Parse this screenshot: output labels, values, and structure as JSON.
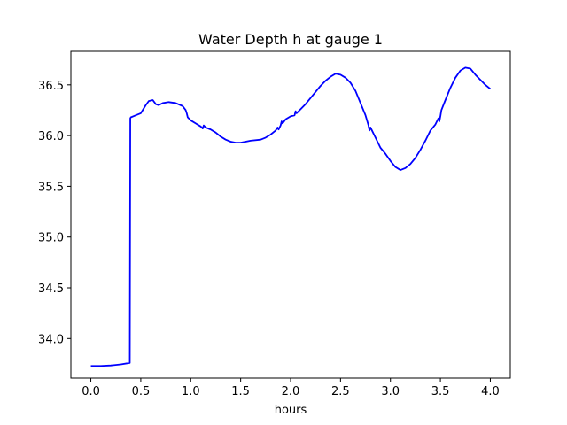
{
  "chart_data": {
    "type": "line",
    "title": "Water Depth h at gauge 1",
    "xlabel": "hours",
    "ylabel": "",
    "xlim": [
      -0.2,
      4.2
    ],
    "ylim": [
      33.61,
      36.83
    ],
    "xticks": [
      "0.0",
      "0.5",
      "1.0",
      "1.5",
      "2.0",
      "2.5",
      "3.0",
      "3.5",
      "4.0"
    ],
    "yticks": [
      "34.0",
      "34.5",
      "35.0",
      "35.5",
      "36.0",
      "36.5"
    ],
    "grid": false,
    "colors": {
      "line": "#0000ff",
      "axis": "#000000",
      "background": "#ffffff"
    },
    "series": [
      {
        "x": [
          0.0,
          0.1,
          0.2,
          0.3,
          0.39,
          0.395,
          0.4,
          0.45,
          0.5,
          0.55,
          0.58,
          0.62,
          0.65,
          0.68,
          0.72,
          0.78,
          0.85,
          0.92,
          0.95,
          0.96,
          0.97,
          1.0,
          1.05,
          1.1,
          1.12,
          1.13,
          1.15,
          1.2,
          1.25,
          1.3,
          1.35,
          1.4,
          1.45,
          1.5,
          1.55,
          1.6,
          1.7,
          1.75,
          1.8,
          1.85,
          1.87,
          1.88,
          1.9,
          1.91,
          1.92,
          1.95,
          2.0,
          2.04,
          2.05,
          2.06,
          2.1,
          2.15,
          2.2,
          2.25,
          2.3,
          2.35,
          2.4,
          2.45,
          2.5,
          2.55,
          2.6,
          2.65,
          2.7,
          2.75,
          2.78,
          2.79,
          2.8,
          2.85,
          2.9,
          2.95,
          3.0,
          3.05,
          3.1,
          3.15,
          3.2,
          3.25,
          3.3,
          3.35,
          3.4,
          3.45,
          3.48,
          3.49,
          3.5,
          3.51,
          3.55,
          3.6,
          3.65,
          3.7,
          3.75,
          3.8,
          3.85,
          3.9,
          3.95,
          4.0
        ],
        "y": [
          33.73,
          33.73,
          33.735,
          33.745,
          33.76,
          36.17,
          36.18,
          36.2,
          36.22,
          36.3,
          36.34,
          36.35,
          36.31,
          36.3,
          36.32,
          36.33,
          36.32,
          36.29,
          36.25,
          36.22,
          36.18,
          36.15,
          36.12,
          36.09,
          36.07,
          36.1,
          36.08,
          36.06,
          36.03,
          35.99,
          35.96,
          35.94,
          35.93,
          35.93,
          35.94,
          35.95,
          35.96,
          35.98,
          36.01,
          36.05,
          36.08,
          36.06,
          36.1,
          36.14,
          36.12,
          36.16,
          36.19,
          36.2,
          36.24,
          36.22,
          36.26,
          36.31,
          36.37,
          36.43,
          36.49,
          36.54,
          36.58,
          36.61,
          36.6,
          36.57,
          36.52,
          36.44,
          36.32,
          36.2,
          36.1,
          36.05,
          36.08,
          35.98,
          35.88,
          35.82,
          35.75,
          35.69,
          35.66,
          35.68,
          35.72,
          35.78,
          35.86,
          35.95,
          36.05,
          36.11,
          36.17,
          36.14,
          36.19,
          36.25,
          36.35,
          36.47,
          36.57,
          36.64,
          36.67,
          36.66,
          36.6,
          36.55,
          36.5,
          36.46
        ]
      }
    ]
  }
}
